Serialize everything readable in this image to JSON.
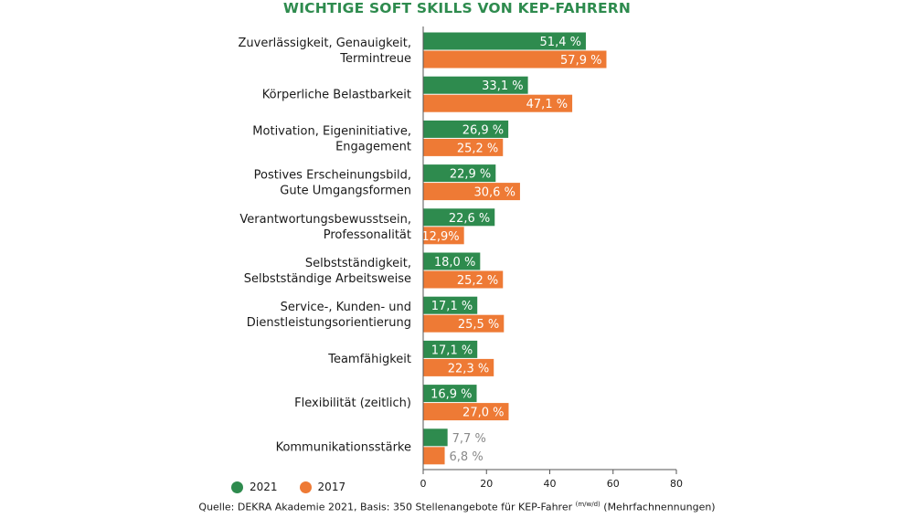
{
  "chart_data": {
    "type": "bar",
    "orientation": "horizontal",
    "title": "WICHTIGE SOFT SKILLS VON KEP-FAHRERN",
    "categories": [
      [
        "Zuverlässigkeit, Genauigkeit,",
        "Termintreue"
      ],
      [
        "Körperliche Belastbarkeit"
      ],
      [
        "Motivation, Eigeninitiative,",
        "Engagement"
      ],
      [
        "Postives Erscheinungsbild,",
        "Gute Umgangsformen"
      ],
      [
        "Verantwortungsbewusstsein,",
        "Professonalität"
      ],
      [
        "Selbstständigkeit,",
        "Selbstständige Arbeitsweise"
      ],
      [
        "Service-, Kunden- und",
        "Dienstleistungsorientierung"
      ],
      [
        "Teamfähigkeit"
      ],
      [
        "Flexibilität (zeitlich)"
      ],
      [
        "Kommunikationsstärke"
      ]
    ],
    "series": [
      {
        "name": "2021",
        "color": "#2e8b4e",
        "values": [
          51.4,
          33.1,
          26.9,
          22.9,
          22.6,
          18.0,
          17.1,
          17.1,
          16.9,
          7.7
        ],
        "labels": [
          "51,4 %",
          "33,1 %",
          "26,9 %",
          "22,9 %",
          "22,6 %",
          "18,0 %",
          "17,1 %",
          "17,1 %",
          "16,9 %",
          "7,7 %"
        ]
      },
      {
        "name": "2017",
        "color": "#ee7a35",
        "values": [
          57.9,
          47.1,
          25.2,
          30.6,
          12.9,
          25.2,
          25.5,
          22.3,
          27.0,
          6.8
        ],
        "labels": [
          "57,9 %",
          "47,1 %",
          "25,2 %",
          "30,6 %",
          "12,9%",
          "25,2 %",
          "25,5 %",
          "22,3 %",
          "27,0 %",
          "6,8 %"
        ]
      }
    ],
    "xlim": [
      0,
      80
    ],
    "xticks": [
      0,
      20,
      40,
      60,
      80
    ],
    "grid": false,
    "legend_position": "bottom-left"
  },
  "source": {
    "text": "Quelle: DEKRA Akademie 2021, Basis: 350 Stellenangebote für KEP-Fahrer",
    "superscript": "(m/w/d)",
    "suffix": " (Mehrfachnennungen)"
  }
}
